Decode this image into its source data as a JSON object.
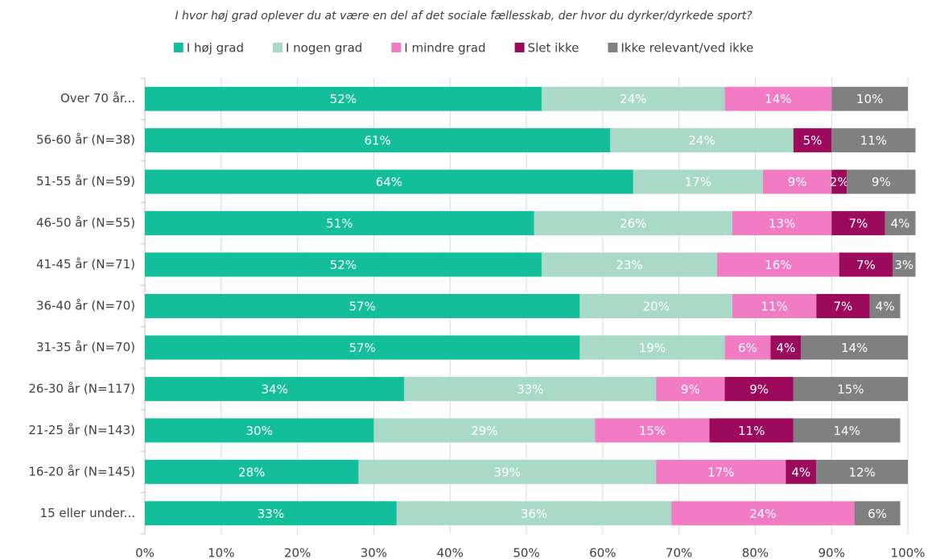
{
  "chart_data": {
    "type": "stacked-barh",
    "title": "I hvor høj grad oplever du at være en del af det sociale fællesskab, der hvor du dyrker/dyrkede sport?",
    "categories": [
      "Over 70 år...",
      "56-60 år (N=38)",
      "51-55 år (N=59)",
      "46-50 år (N=55)",
      "41-45 år (N=71)",
      "36-40 år (N=70)",
      "31-35 år (N=70)",
      "26-30 år (N=117)",
      "21-25 år (N=143)",
      "16-20 år (N=145)",
      "15 eller under..."
    ],
    "series": [
      {
        "name": "I høj grad",
        "color": "#13bf9b",
        "values": [
          52,
          61,
          64,
          51,
          52,
          57,
          57,
          34,
          30,
          28,
          33
        ],
        "value_labels": [
          "52%",
          "61%",
          "64%",
          "51%",
          "52%",
          "57%",
          "57%",
          "34%",
          "30%",
          "28%",
          "33%"
        ]
      },
      {
        "name": "I nogen grad",
        "color": "#a9dac7",
        "values": [
          24,
          24,
          17,
          26,
          23,
          20,
          19,
          33,
          29,
          39,
          36
        ],
        "value_labels": [
          "24%",
          "24%",
          "17%",
          "26%",
          "23%",
          "20%",
          "19%",
          "33%",
          "29%",
          "39%",
          "36%"
        ]
      },
      {
        "name": "I mindre grad",
        "color": "#f17cc4",
        "values": [
          14,
          null,
          9,
          13,
          16,
          11,
          6,
          9,
          15,
          17,
          24
        ],
        "value_labels": [
          "14%",
          null,
          "9%",
          "13%",
          "16%",
          "11%",
          "6%",
          "9%",
          "15%",
          "17%",
          "24%"
        ]
      },
      {
        "name": "Slet ikke",
        "color": "#9c0b5b",
        "values": [
          null,
          5,
          2,
          7,
          7,
          7,
          4,
          9,
          11,
          4,
          null
        ],
        "value_labels": [
          null,
          "5%",
          "2%",
          "7%",
          "7%",
          "7%",
          "4%",
          "9%",
          "11%",
          "4%",
          null
        ]
      },
      {
        "name": "Ikke relevant/ved ikke",
        "color": "#808080",
        "values": [
          10,
          11,
          9,
          4,
          3,
          4,
          14,
          15,
          14,
          12,
          6
        ],
        "value_labels": [
          "10%",
          "11%",
          "9%",
          "4%",
          "3%",
          "4%",
          "14%",
          "15%",
          "14%",
          "12%",
          "6%"
        ]
      }
    ],
    "xlim": [
      0,
      100
    ],
    "xticks": [
      {
        "value": 0,
        "label": "0%"
      },
      {
        "value": 10,
        "label": "10%"
      },
      {
        "value": 20,
        "label": "20%"
      },
      {
        "value": 30,
        "label": "30%"
      },
      {
        "value": 40,
        "label": "40%"
      },
      {
        "value": 50,
        "label": "50%"
      },
      {
        "value": 60,
        "label": "60%"
      },
      {
        "value": 70,
        "label": "70%"
      },
      {
        "value": 80,
        "label": "80%"
      },
      {
        "value": 90,
        "label": "90%"
      },
      {
        "value": 100,
        "label": "100%"
      }
    ],
    "grid": true,
    "legend": "top"
  }
}
